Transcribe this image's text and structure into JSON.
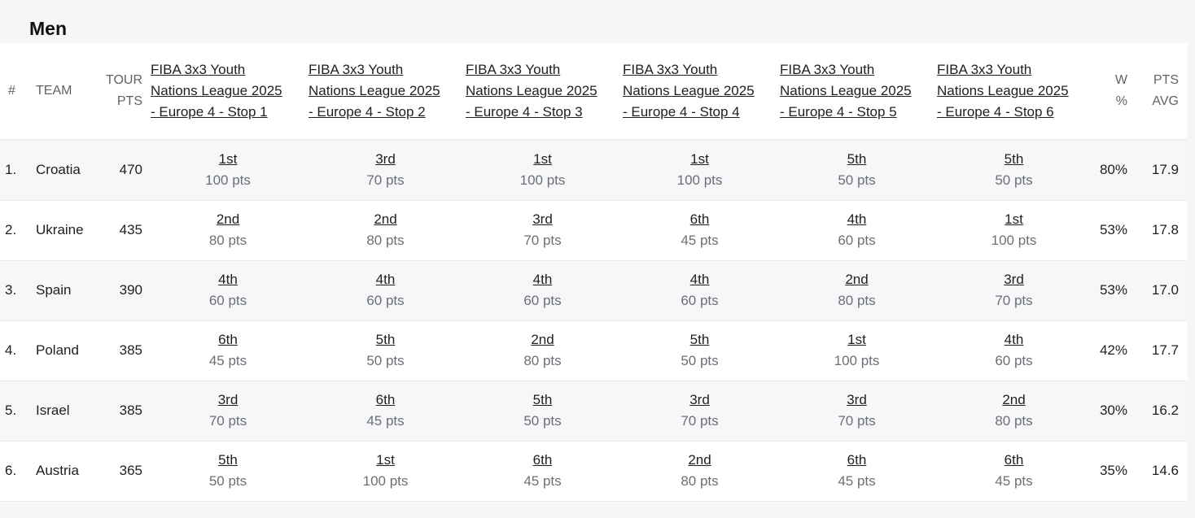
{
  "section_title": "Men",
  "headers": {
    "rank": "#",
    "team": "TEAM",
    "tour_pts_line1": "TOUR",
    "tour_pts_line2": "PTS",
    "win_pct_line1": "W",
    "win_pct_line2": "%",
    "pts_avg_line1": "PTS",
    "pts_avg_line2": "AVG",
    "stages": [
      {
        "line1": "FIBA 3x3 Youth",
        "line2": "Nations League 2025",
        "line3": "- Europe 4 - Stop 1"
      },
      {
        "line1": "FIBA 3x3 Youth",
        "line2": "Nations League 2025",
        "line3": "- Europe 4 - Stop 2"
      },
      {
        "line1": "FIBA 3x3 Youth",
        "line2": "Nations League 2025",
        "line3": "- Europe 4 - Stop 3"
      },
      {
        "line1": "FIBA 3x3 Youth",
        "line2": "Nations League 2025",
        "line3": "- Europe 4 - Stop 4"
      },
      {
        "line1": "FIBA 3x3 Youth",
        "line2": "Nations League 2025",
        "line3": "- Europe 4 - Stop 5"
      },
      {
        "line1": "FIBA 3x3 Youth",
        "line2": "Nations League 2025",
        "line3": "- Europe 4 - Stop 6"
      }
    ]
  },
  "rows": [
    {
      "rank": "1.",
      "team": "Croatia",
      "tour_pts": "470",
      "win_pct": "80%",
      "pts_avg": "17.9",
      "stages": [
        {
          "place": "1st",
          "pts": "100 pts"
        },
        {
          "place": "3rd",
          "pts": "70 pts"
        },
        {
          "place": "1st",
          "pts": "100 pts"
        },
        {
          "place": "1st",
          "pts": "100 pts"
        },
        {
          "place": "5th",
          "pts": "50 pts"
        },
        {
          "place": "5th",
          "pts": "50 pts"
        }
      ]
    },
    {
      "rank": "2.",
      "team": "Ukraine",
      "tour_pts": "435",
      "win_pct": "53%",
      "pts_avg": "17.8",
      "stages": [
        {
          "place": "2nd",
          "pts": "80 pts"
        },
        {
          "place": "2nd",
          "pts": "80 pts"
        },
        {
          "place": "3rd",
          "pts": "70 pts"
        },
        {
          "place": "6th",
          "pts": "45 pts"
        },
        {
          "place": "4th",
          "pts": "60 pts"
        },
        {
          "place": "1st",
          "pts": "100 pts"
        }
      ]
    },
    {
      "rank": "3.",
      "team": "Spain",
      "tour_pts": "390",
      "win_pct": "53%",
      "pts_avg": "17.0",
      "stages": [
        {
          "place": "4th",
          "pts": "60 pts"
        },
        {
          "place": "4th",
          "pts": "60 pts"
        },
        {
          "place": "4th",
          "pts": "60 pts"
        },
        {
          "place": "4th",
          "pts": "60 pts"
        },
        {
          "place": "2nd",
          "pts": "80 pts"
        },
        {
          "place": "3rd",
          "pts": "70 pts"
        }
      ]
    },
    {
      "rank": "4.",
      "team": "Poland",
      "tour_pts": "385",
      "win_pct": "42%",
      "pts_avg": "17.7",
      "stages": [
        {
          "place": "6th",
          "pts": "45 pts"
        },
        {
          "place": "5th",
          "pts": "50 pts"
        },
        {
          "place": "2nd",
          "pts": "80 pts"
        },
        {
          "place": "5th",
          "pts": "50 pts"
        },
        {
          "place": "1st",
          "pts": "100 pts"
        },
        {
          "place": "4th",
          "pts": "60 pts"
        }
      ]
    },
    {
      "rank": "5.",
      "team": "Israel",
      "tour_pts": "385",
      "win_pct": "30%",
      "pts_avg": "16.2",
      "stages": [
        {
          "place": "3rd",
          "pts": "70 pts"
        },
        {
          "place": "6th",
          "pts": "45 pts"
        },
        {
          "place": "5th",
          "pts": "50 pts"
        },
        {
          "place": "3rd",
          "pts": "70 pts"
        },
        {
          "place": "3rd",
          "pts": "70 pts"
        },
        {
          "place": "2nd",
          "pts": "80 pts"
        }
      ]
    },
    {
      "rank": "6.",
      "team": "Austria",
      "tour_pts": "365",
      "win_pct": "35%",
      "pts_avg": "14.6",
      "stages": [
        {
          "place": "5th",
          "pts": "50 pts"
        },
        {
          "place": "1st",
          "pts": "100 pts"
        },
        {
          "place": "6th",
          "pts": "45 pts"
        },
        {
          "place": "2nd",
          "pts": "80 pts"
        },
        {
          "place": "6th",
          "pts": "45 pts"
        },
        {
          "place": "6th",
          "pts": "45 pts"
        }
      ]
    }
  ]
}
